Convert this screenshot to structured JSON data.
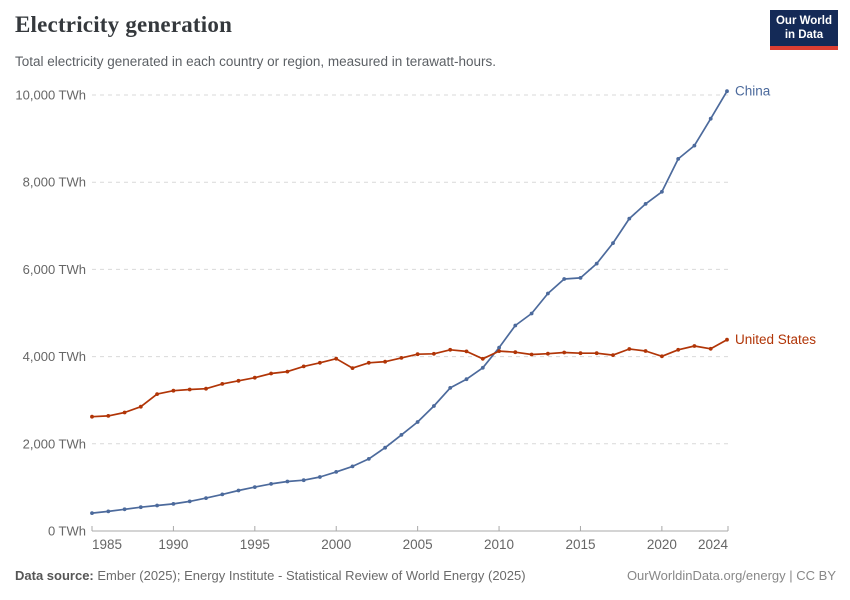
{
  "header": {
    "title": "Electricity generation",
    "subtitle": "Total electricity generated in each country or region, measured in terawatt-hours.",
    "logo": {
      "line1": "Our World",
      "line2": "in Data",
      "bg_color": "#142a57",
      "accent_color": "#dc3e32"
    }
  },
  "footer": {
    "source_label": "Data source:",
    "source_text": " Ember (2025); Energy Institute - Statistical Review of World Energy (2025)",
    "link_text": "OurWorldinData.org/energy | CC BY"
  },
  "chart_data": {
    "type": "line",
    "title": "Electricity generation",
    "unit": "TWh",
    "grid": "horizontal dashed",
    "legend_position": "end-of-line labels",
    "ylim": [
      0,
      10000
    ],
    "yticks": [
      0,
      2000,
      4000,
      6000,
      8000,
      10000
    ],
    "xticks": [
      1985,
      1990,
      1995,
      2000,
      2005,
      2010,
      2015,
      2020,
      2024
    ],
    "x": [
      1985,
      1986,
      1987,
      1988,
      1989,
      1990,
      1991,
      1992,
      1993,
      1994,
      1995,
      1996,
      1997,
      1998,
      1999,
      2000,
      2001,
      2002,
      2003,
      2004,
      2005,
      2006,
      2007,
      2008,
      2009,
      2010,
      2011,
      2012,
      2013,
      2014,
      2015,
      2016,
      2017,
      2018,
      2019,
      2020,
      2021,
      2022,
      2023,
      2024
    ],
    "series": [
      {
        "name": "China",
        "color": "#4c6a9c",
        "values": [
          411,
          450,
          497,
          545,
          585,
          621,
          678,
          754,
          840,
          928,
          1008,
          1081,
          1136,
          1166,
          1239,
          1356,
          1481,
          1654,
          1911,
          2203,
          2500,
          2866,
          3282,
          3482,
          3742,
          4207,
          4713,
          4988,
          5447,
          5780,
          5805,
          6133,
          6604,
          7166,
          7503,
          7779,
          8534,
          8840,
          9456,
          10087
        ]
      },
      {
        "name": "United States",
        "color": "#b13507",
        "values": [
          2622,
          2641,
          2719,
          2852,
          3141,
          3219,
          3245,
          3264,
          3375,
          3446,
          3517,
          3612,
          3657,
          3776,
          3858,
          3952,
          3737,
          3858,
          3883,
          3971,
          4055,
          4065,
          4157,
          4119,
          3950,
          4125,
          4100,
          4048,
          4066,
          4094,
          4078,
          4077,
          4034,
          4174,
          4128,
          4007,
          4156,
          4243,
          4178,
          4387
        ]
      }
    ],
    "gridline_color": "#d9d9d9",
    "axis_color": "#a8a8a8",
    "tick_label_color": "#666666"
  }
}
